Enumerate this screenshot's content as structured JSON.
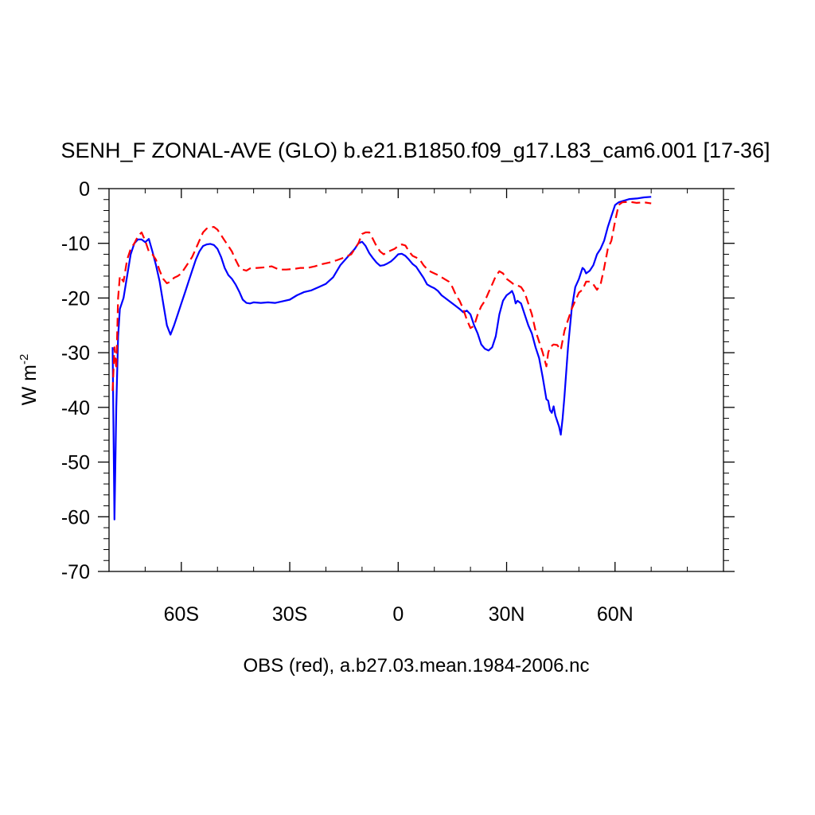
{
  "colors": {
    "model": "#0000ff",
    "obs": "#ff0000",
    "axis": "#000000"
  },
  "chart_data": {
    "type": "line",
    "title": "SENH_F ZONAL-AVE (GLO) b.e21.B1850.f09_g17.L83_cam6.001 [17-36]",
    "ylabel_main": "W m",
    "ylabel_sup": "-2",
    "footer": "OBS (red), a.b27.03.mean.1984-2006.nc",
    "xlim": [
      -80,
      90
    ],
    "ylim": [
      -70,
      0
    ],
    "x_ticks": [
      {
        "value": -60,
        "label": "60S"
      },
      {
        "value": -30,
        "label": "30S"
      },
      {
        "value": 0,
        "label": "0"
      },
      {
        "value": 30,
        "label": "30N"
      },
      {
        "value": 60,
        "label": "60N"
      }
    ],
    "y_ticks": [
      {
        "value": 0,
        "label": "0"
      },
      {
        "value": -10,
        "label": "-10"
      },
      {
        "value": -20,
        "label": "-20"
      },
      {
        "value": -30,
        "label": "-30"
      },
      {
        "value": -40,
        "label": "-40"
      },
      {
        "value": -50,
        "label": "-50"
      },
      {
        "value": -60,
        "label": "-60"
      },
      {
        "value": -70,
        "label": "-70"
      }
    ],
    "grid": false,
    "series": [
      {
        "color": "#0000ff",
        "dash": "solid",
        "points": [
          [
            -79,
            -29
          ],
          [
            -78.5,
            -60.5
          ],
          [
            -78,
            -40
          ],
          [
            -77.5,
            -27
          ],
          [
            -77,
            -22
          ],
          [
            -76,
            -20
          ],
          [
            -75,
            -16
          ],
          [
            -74,
            -12
          ],
          [
            -73,
            -10
          ],
          [
            -72,
            -9.3
          ],
          [
            -71,
            -9.3
          ],
          [
            -70,
            -9.8
          ],
          [
            -69,
            -9.2
          ],
          [
            -68,
            -11.5
          ],
          [
            -67,
            -14
          ],
          [
            -66,
            -17
          ],
          [
            -65,
            -21
          ],
          [
            -64,
            -25
          ],
          [
            -63,
            -26.7
          ],
          [
            -62,
            -25
          ],
          [
            -61,
            -23
          ],
          [
            -60,
            -21
          ],
          [
            -59,
            -19
          ],
          [
            -58,
            -17
          ],
          [
            -57,
            -15
          ],
          [
            -56,
            -13
          ],
          [
            -55,
            -11.5
          ],
          [
            -54,
            -10.5
          ],
          [
            -53,
            -10.2
          ],
          [
            -52,
            -10.1
          ],
          [
            -51,
            -10.3
          ],
          [
            -50,
            -11
          ],
          [
            -49,
            -12.5
          ],
          [
            -48,
            -14.5
          ],
          [
            -47,
            -15.8
          ],
          [
            -46,
            -16.5
          ],
          [
            -45,
            -17.5
          ],
          [
            -44,
            -18.8
          ],
          [
            -43,
            -20.3
          ],
          [
            -42,
            -20.9
          ],
          [
            -41,
            -21
          ],
          [
            -40,
            -20.8
          ],
          [
            -38,
            -20.9
          ],
          [
            -36,
            -20.8
          ],
          [
            -34,
            -20.9
          ],
          [
            -32,
            -20.6
          ],
          [
            -30,
            -20.3
          ],
          [
            -28,
            -19.5
          ],
          [
            -26,
            -18.9
          ],
          [
            -24,
            -18.6
          ],
          [
            -22,
            -18
          ],
          [
            -20,
            -17.4
          ],
          [
            -18,
            -16.2
          ],
          [
            -16,
            -14
          ],
          [
            -14,
            -12.5
          ],
          [
            -12,
            -11
          ],
          [
            -11,
            -10
          ],
          [
            -10,
            -9.7
          ],
          [
            -9,
            -10.5
          ],
          [
            -8,
            -11.8
          ],
          [
            -7,
            -12.7
          ],
          [
            -6,
            -13.5
          ],
          [
            -5,
            -14.1
          ],
          [
            -4,
            -14
          ],
          [
            -3,
            -13.7
          ],
          [
            -2,
            -13.3
          ],
          [
            -1,
            -12.7
          ],
          [
            0,
            -12
          ],
          [
            1,
            -11.9
          ],
          [
            2,
            -12.3
          ],
          [
            3,
            -13
          ],
          [
            4,
            -13.8
          ],
          [
            5,
            -14.3
          ],
          [
            6,
            -15.3
          ],
          [
            7,
            -16.3
          ],
          [
            8,
            -17.5
          ],
          [
            9,
            -17.9
          ],
          [
            10,
            -18.2
          ],
          [
            11,
            -18.7
          ],
          [
            12,
            -19.5
          ],
          [
            13,
            -20
          ],
          [
            14,
            -20.5
          ],
          [
            15,
            -21
          ],
          [
            16,
            -21.5
          ],
          [
            17,
            -22
          ],
          [
            18,
            -22.6
          ],
          [
            19,
            -22.3
          ],
          [
            20,
            -23
          ],
          [
            21,
            -25
          ],
          [
            22,
            -26.5
          ],
          [
            23,
            -28.5
          ],
          [
            24,
            -29.3
          ],
          [
            25,
            -29.6
          ],
          [
            26,
            -29
          ],
          [
            27,
            -27
          ],
          [
            28,
            -23
          ],
          [
            29,
            -20.5
          ],
          [
            30,
            -19.5
          ],
          [
            31,
            -19
          ],
          [
            31.5,
            -18.7
          ],
          [
            32,
            -19.5
          ],
          [
            32.5,
            -21
          ],
          [
            33,
            -20.5
          ],
          [
            34,
            -21
          ],
          [
            35,
            -23
          ],
          [
            36,
            -25
          ],
          [
            37,
            -26.5
          ],
          [
            38,
            -29
          ],
          [
            39,
            -31
          ],
          [
            40,
            -34.5
          ],
          [
            41,
            -38.5
          ],
          [
            41.5,
            -38.8
          ],
          [
            42,
            -40.5
          ],
          [
            42.5,
            -41
          ],
          [
            43,
            -39.8
          ],
          [
            43.5,
            -41.5
          ],
          [
            44,
            -42.5
          ],
          [
            44.5,
            -43.5
          ],
          [
            45,
            -45
          ],
          [
            45.5,
            -42
          ],
          [
            46,
            -38
          ],
          [
            47,
            -29
          ],
          [
            48,
            -22
          ],
          [
            49,
            -18
          ],
          [
            50,
            -16.5
          ],
          [
            51,
            -14.5
          ],
          [
            51.5,
            -14.8
          ],
          [
            52,
            -15.5
          ],
          [
            53,
            -15
          ],
          [
            54,
            -14
          ],
          [
            55,
            -12
          ],
          [
            56,
            -11
          ],
          [
            57,
            -9.5
          ],
          [
            58,
            -7
          ],
          [
            59,
            -5
          ],
          [
            60,
            -3
          ],
          [
            61,
            -2.5
          ],
          [
            62,
            -2.3
          ],
          [
            63,
            -2.1
          ],
          [
            64,
            -1.9
          ],
          [
            66,
            -1.8
          ],
          [
            68,
            -1.6
          ],
          [
            70,
            -1.5
          ]
        ]
      },
      {
        "color": "#ff0000",
        "dash": "dashed",
        "points": [
          [
            -79,
            -37
          ],
          [
            -78.5,
            -29
          ],
          [
            -78,
            -33
          ],
          [
            -77.5,
            -20
          ],
          [
            -77,
            -16
          ],
          [
            -76,
            -17
          ],
          [
            -75,
            -13
          ],
          [
            -74,
            -11
          ],
          [
            -73,
            -10
          ],
          [
            -72,
            -8.7
          ],
          [
            -71,
            -8
          ],
          [
            -70,
            -9.5
          ],
          [
            -69,
            -11.5
          ],
          [
            -68,
            -12
          ],
          [
            -67,
            -13
          ],
          [
            -66,
            -15
          ],
          [
            -65,
            -16.5
          ],
          [
            -64,
            -17.3
          ],
          [
            -63,
            -17
          ],
          [
            -62,
            -16.3
          ],
          [
            -61,
            -16
          ],
          [
            -60,
            -15.5
          ],
          [
            -59,
            -14.5
          ],
          [
            -58,
            -13.5
          ],
          [
            -57,
            -12.5
          ],
          [
            -56,
            -11
          ],
          [
            -55,
            -9.5
          ],
          [
            -54,
            -8
          ],
          [
            -53,
            -7.3
          ],
          [
            -52,
            -7.1
          ],
          [
            -51,
            -7
          ],
          [
            -50,
            -7.5
          ],
          [
            -49,
            -8.5
          ],
          [
            -48,
            -9.5
          ],
          [
            -47,
            -10.5
          ],
          [
            -46,
            -11.5
          ],
          [
            -45,
            -13
          ],
          [
            -44,
            -14.3
          ],
          [
            -43,
            -14.8
          ],
          [
            -42,
            -15
          ],
          [
            -41,
            -14.6
          ],
          [
            -39,
            -14.5
          ],
          [
            -37,
            -14.4
          ],
          [
            -35,
            -14.2
          ],
          [
            -33,
            -14.8
          ],
          [
            -31,
            -14.8
          ],
          [
            -29,
            -14.7
          ],
          [
            -27,
            -14.5
          ],
          [
            -25,
            -14.5
          ],
          [
            -23,
            -14.2
          ],
          [
            -21,
            -13.8
          ],
          [
            -19,
            -13.5
          ],
          [
            -17,
            -13.1
          ],
          [
            -15,
            -12.6
          ],
          [
            -13,
            -12
          ],
          [
            -11,
            -10
          ],
          [
            -10,
            -8.3
          ],
          [
            -9,
            -8
          ],
          [
            -8,
            -8
          ],
          [
            -7,
            -9.2
          ],
          [
            -6,
            -10.5
          ],
          [
            -5,
            -11.5
          ],
          [
            -4,
            -12
          ],
          [
            -3,
            -11.6
          ],
          [
            -2,
            -11.3
          ],
          [
            -1,
            -11
          ],
          [
            0,
            -10.5
          ],
          [
            1,
            -10.2
          ],
          [
            2,
            -10.4
          ],
          [
            3,
            -11.5
          ],
          [
            4,
            -12.3
          ],
          [
            5,
            -12.6
          ],
          [
            6,
            -13
          ],
          [
            7,
            -14
          ],
          [
            8,
            -14.7
          ],
          [
            9,
            -15.2
          ],
          [
            10,
            -15.5
          ],
          [
            11,
            -15.8
          ],
          [
            12,
            -16.2
          ],
          [
            13,
            -16.6
          ],
          [
            14,
            -17
          ],
          [
            15,
            -18
          ],
          [
            16,
            -19.5
          ],
          [
            17,
            -20.5
          ],
          [
            18,
            -22
          ],
          [
            19,
            -24
          ],
          [
            20,
            -25.5
          ],
          [
            21,
            -25.1
          ],
          [
            22,
            -23
          ],
          [
            23,
            -21.5
          ],
          [
            24,
            -20.5
          ],
          [
            25,
            -19
          ],
          [
            26,
            -17.5
          ],
          [
            27,
            -16
          ],
          [
            28,
            -15.1
          ],
          [
            29,
            -15.5
          ],
          [
            30,
            -16.5
          ],
          [
            31,
            -17
          ],
          [
            32,
            -17.5
          ],
          [
            33,
            -17.7
          ],
          [
            34,
            -18
          ],
          [
            35,
            -19
          ],
          [
            36,
            -21
          ],
          [
            37,
            -23
          ],
          [
            38,
            -26
          ],
          [
            39,
            -28
          ],
          [
            40,
            -30
          ],
          [
            41,
            -32.5
          ],
          [
            41.5,
            -30
          ],
          [
            42,
            -29
          ],
          [
            43,
            -28.5
          ],
          [
            44,
            -28.6
          ],
          [
            45,
            -29.5
          ],
          [
            46,
            -26
          ],
          [
            47,
            -24
          ],
          [
            48,
            -22
          ],
          [
            49,
            -20.5
          ],
          [
            50,
            -19
          ],
          [
            51,
            -18.5
          ],
          [
            52,
            -17
          ],
          [
            53,
            -17
          ],
          [
            54,
            -17.5
          ],
          [
            55,
            -18.5
          ],
          [
            56,
            -17.5
          ],
          [
            57,
            -14.5
          ],
          [
            58,
            -11
          ],
          [
            59,
            -9.5
          ],
          [
            60,
            -6
          ],
          [
            61,
            -3
          ],
          [
            62,
            -2.5
          ],
          [
            64,
            -2.4
          ],
          [
            66,
            -2.6
          ],
          [
            68,
            -2.5
          ],
          [
            70,
            -2.7
          ]
        ]
      }
    ]
  }
}
